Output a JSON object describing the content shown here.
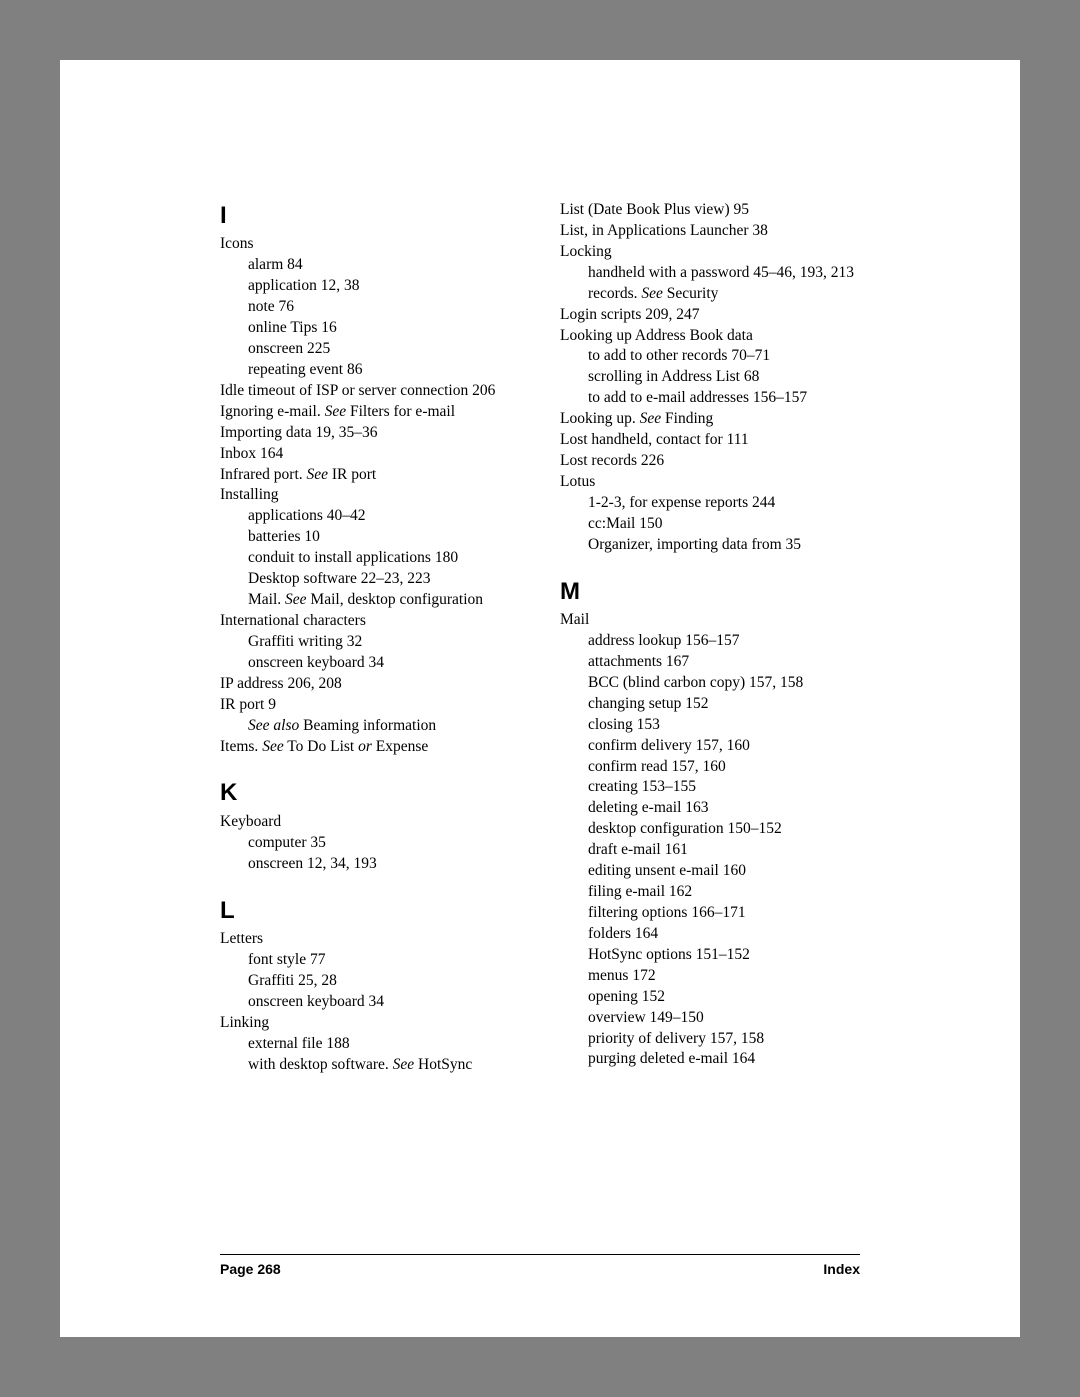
{
  "font": {
    "body_family": "Palatino Linotype, Book Antiqua, Palatino, Georgia, serif",
    "letter_family": "Arial, Helvetica, sans-serif",
    "body_size_pt": 11,
    "letter_size_pt": 18,
    "footer_size_pt": 10
  },
  "colors": {
    "page_bg": "#ffffff",
    "outer_bg": "#808080",
    "text": "#000000",
    "rule": "#000000"
  },
  "footer": {
    "left": "Page 268",
    "right": "Index"
  },
  "left_column": [
    {
      "type": "letter",
      "text": "I"
    },
    {
      "type": "line",
      "indent": 0,
      "segments": [
        {
          "t": "Icons"
        }
      ]
    },
    {
      "type": "line",
      "indent": 1,
      "segments": [
        {
          "t": "alarm 84"
        }
      ]
    },
    {
      "type": "line",
      "indent": 1,
      "segments": [
        {
          "t": "application 12, 38"
        }
      ]
    },
    {
      "type": "line",
      "indent": 1,
      "segments": [
        {
          "t": "note 76"
        }
      ]
    },
    {
      "type": "line",
      "indent": 1,
      "segments": [
        {
          "t": "online Tips 16"
        }
      ]
    },
    {
      "type": "line",
      "indent": 1,
      "segments": [
        {
          "t": "onscreen 225"
        }
      ]
    },
    {
      "type": "line",
      "indent": 1,
      "segments": [
        {
          "t": "repeating event 86"
        }
      ]
    },
    {
      "type": "line",
      "indent": 0,
      "segments": [
        {
          "t": "Idle timeout of ISP or server connection 206"
        }
      ]
    },
    {
      "type": "line",
      "indent": 0,
      "segments": [
        {
          "t": "Ignoring e-mail. "
        },
        {
          "t": "See",
          "i": true
        },
        {
          "t": " Filters for e-mail"
        }
      ]
    },
    {
      "type": "line",
      "indent": 0,
      "segments": [
        {
          "t": "Importing data 19, 35–36"
        }
      ]
    },
    {
      "type": "line",
      "indent": 0,
      "segments": [
        {
          "t": "Inbox 164"
        }
      ]
    },
    {
      "type": "line",
      "indent": 0,
      "segments": [
        {
          "t": "Infrared port. "
        },
        {
          "t": "See",
          "i": true
        },
        {
          "t": " IR port"
        }
      ]
    },
    {
      "type": "line",
      "indent": 0,
      "segments": [
        {
          "t": "Installing"
        }
      ]
    },
    {
      "type": "line",
      "indent": 1,
      "segments": [
        {
          "t": "applications 40–42"
        }
      ]
    },
    {
      "type": "line",
      "indent": 1,
      "segments": [
        {
          "t": "batteries 10"
        }
      ]
    },
    {
      "type": "line",
      "indent": 1,
      "segments": [
        {
          "t": "conduit to install applications 180"
        }
      ]
    },
    {
      "type": "line",
      "indent": 1,
      "segments": [
        {
          "t": "Desktop software 22–23, 223"
        }
      ]
    },
    {
      "type": "line",
      "indent": 1,
      "segments": [
        {
          "t": "Mail. "
        },
        {
          "t": "See",
          "i": true
        },
        {
          "t": " Mail, desktop configuration"
        }
      ]
    },
    {
      "type": "line",
      "indent": 0,
      "segments": [
        {
          "t": "International characters"
        }
      ]
    },
    {
      "type": "line",
      "indent": 1,
      "segments": [
        {
          "t": "Graffiti writing 32"
        }
      ]
    },
    {
      "type": "line",
      "indent": 1,
      "segments": [
        {
          "t": "onscreen keyboard 34"
        }
      ]
    },
    {
      "type": "line",
      "indent": 0,
      "segments": [
        {
          "t": "IP address 206, 208"
        }
      ]
    },
    {
      "type": "line",
      "indent": 0,
      "segments": [
        {
          "t": "IR port 9"
        }
      ]
    },
    {
      "type": "line",
      "indent": 1,
      "segments": [
        {
          "t": "See also",
          "i": true
        },
        {
          "t": "  Beaming information"
        }
      ]
    },
    {
      "type": "line",
      "indent": 0,
      "segments": [
        {
          "t": "Items. "
        },
        {
          "t": "See",
          "i": true
        },
        {
          "t": " To Do List "
        },
        {
          "t": "or",
          "i": true
        },
        {
          "t": " Expense"
        }
      ]
    },
    {
      "type": "letter",
      "text": "K"
    },
    {
      "type": "line",
      "indent": 0,
      "segments": [
        {
          "t": "Keyboard"
        }
      ]
    },
    {
      "type": "line",
      "indent": 1,
      "segments": [
        {
          "t": "computer 35"
        }
      ]
    },
    {
      "type": "line",
      "indent": 1,
      "segments": [
        {
          "t": "onscreen 12, 34, 193"
        }
      ]
    },
    {
      "type": "letter",
      "text": "L"
    },
    {
      "type": "line",
      "indent": 0,
      "segments": [
        {
          "t": "Letters"
        }
      ]
    },
    {
      "type": "line",
      "indent": 1,
      "segments": [
        {
          "t": "font style 77"
        }
      ]
    },
    {
      "type": "line",
      "indent": 1,
      "segments": [
        {
          "t": "Graffiti 25, 28"
        }
      ]
    },
    {
      "type": "line",
      "indent": 1,
      "segments": [
        {
          "t": "onscreen keyboard 34"
        }
      ]
    },
    {
      "type": "line",
      "indent": 0,
      "segments": [
        {
          "t": "Linking"
        }
      ]
    },
    {
      "type": "line",
      "indent": 1,
      "segments": [
        {
          "t": "external file 188"
        }
      ]
    },
    {
      "type": "line",
      "indent": 1,
      "segments": [
        {
          "t": "with desktop software. "
        },
        {
          "t": "See",
          "i": true
        },
        {
          "t": " HotSync"
        }
      ]
    }
  ],
  "right_column": [
    {
      "type": "line",
      "indent": 0,
      "segments": [
        {
          "t": "List (Date Book Plus view) 95"
        }
      ]
    },
    {
      "type": "line",
      "indent": 0,
      "segments": [
        {
          "t": "List, in Applications Launcher 38"
        }
      ]
    },
    {
      "type": "line",
      "indent": 0,
      "segments": [
        {
          "t": "Locking"
        }
      ]
    },
    {
      "type": "line",
      "indent": 1,
      "segments": [
        {
          "t": "handheld with a password 45–46, 193, 213"
        }
      ]
    },
    {
      "type": "line",
      "indent": 1,
      "segments": [
        {
          "t": "records. "
        },
        {
          "t": "See",
          "i": true
        },
        {
          "t": " Security"
        }
      ]
    },
    {
      "type": "line",
      "indent": 0,
      "segments": [
        {
          "t": "Login scripts 209, 247"
        }
      ]
    },
    {
      "type": "line",
      "indent": 0,
      "segments": [
        {
          "t": "Looking up Address Book data"
        }
      ]
    },
    {
      "type": "line",
      "indent": 1,
      "segments": [
        {
          "t": "to add to other records 70–71"
        }
      ]
    },
    {
      "type": "line",
      "indent": 1,
      "segments": [
        {
          "t": "scrolling in Address List 68"
        }
      ]
    },
    {
      "type": "line",
      "indent": 1,
      "segments": [
        {
          "t": "to add to e-mail addresses 156–157"
        }
      ]
    },
    {
      "type": "line",
      "indent": 0,
      "segments": [
        {
          "t": "Looking up. "
        },
        {
          "t": "See",
          "i": true
        },
        {
          "t": " Finding"
        }
      ]
    },
    {
      "type": "line",
      "indent": 0,
      "segments": [
        {
          "t": "Lost handheld, contact for 111"
        }
      ]
    },
    {
      "type": "line",
      "indent": 0,
      "segments": [
        {
          "t": "Lost records 226"
        }
      ]
    },
    {
      "type": "line",
      "indent": 0,
      "segments": [
        {
          "t": "Lotus"
        }
      ]
    },
    {
      "type": "line",
      "indent": 1,
      "segments": [
        {
          "t": "1-2-3, for expense reports 244"
        }
      ]
    },
    {
      "type": "line",
      "indent": 1,
      "segments": [
        {
          "t": "cc:Mail 150"
        }
      ]
    },
    {
      "type": "line",
      "indent": 1,
      "segments": [
        {
          "t": "Organizer, importing data from 35"
        }
      ]
    },
    {
      "type": "letter",
      "text": "M"
    },
    {
      "type": "line",
      "indent": 0,
      "segments": [
        {
          "t": "Mail"
        }
      ]
    },
    {
      "type": "line",
      "indent": 1,
      "segments": [
        {
          "t": "address lookup 156–157"
        }
      ]
    },
    {
      "type": "line",
      "indent": 1,
      "segments": [
        {
          "t": "attachments 167"
        }
      ]
    },
    {
      "type": "line",
      "indent": 1,
      "segments": [
        {
          "t": "BCC (blind carbon copy) 157, 158"
        }
      ]
    },
    {
      "type": "line",
      "indent": 1,
      "segments": [
        {
          "t": "changing setup 152"
        }
      ]
    },
    {
      "type": "line",
      "indent": 1,
      "segments": [
        {
          "t": "closing 153"
        }
      ]
    },
    {
      "type": "line",
      "indent": 1,
      "segments": [
        {
          "t": "confirm delivery 157, 160"
        }
      ]
    },
    {
      "type": "line",
      "indent": 1,
      "segments": [
        {
          "t": "confirm read 157, 160"
        }
      ]
    },
    {
      "type": "line",
      "indent": 1,
      "segments": [
        {
          "t": "creating 153–155"
        }
      ]
    },
    {
      "type": "line",
      "indent": 1,
      "segments": [
        {
          "t": "deleting e-mail 163"
        }
      ]
    },
    {
      "type": "line",
      "indent": 1,
      "segments": [
        {
          "t": "desktop configuration 150–152"
        }
      ]
    },
    {
      "type": "line",
      "indent": 1,
      "segments": [
        {
          "t": "draft e-mail 161"
        }
      ]
    },
    {
      "type": "line",
      "indent": 1,
      "segments": [
        {
          "t": "editing unsent e-mail 160"
        }
      ]
    },
    {
      "type": "line",
      "indent": 1,
      "segments": [
        {
          "t": "filing e-mail 162"
        }
      ]
    },
    {
      "type": "line",
      "indent": 1,
      "segments": [
        {
          "t": "filtering options 166–171"
        }
      ]
    },
    {
      "type": "line",
      "indent": 1,
      "segments": [
        {
          "t": "folders 164"
        }
      ]
    },
    {
      "type": "line",
      "indent": 1,
      "segments": [
        {
          "t": "HotSync options 151–152"
        }
      ]
    },
    {
      "type": "line",
      "indent": 1,
      "segments": [
        {
          "t": "menus 172"
        }
      ]
    },
    {
      "type": "line",
      "indent": 1,
      "segments": [
        {
          "t": "opening 152"
        }
      ]
    },
    {
      "type": "line",
      "indent": 1,
      "segments": [
        {
          "t": "overview 149–150"
        }
      ]
    },
    {
      "type": "line",
      "indent": 1,
      "segments": [
        {
          "t": "priority of delivery 157, 158"
        }
      ]
    },
    {
      "type": "line",
      "indent": 1,
      "segments": [
        {
          "t": "purging deleted e-mail 164"
        }
      ]
    }
  ]
}
